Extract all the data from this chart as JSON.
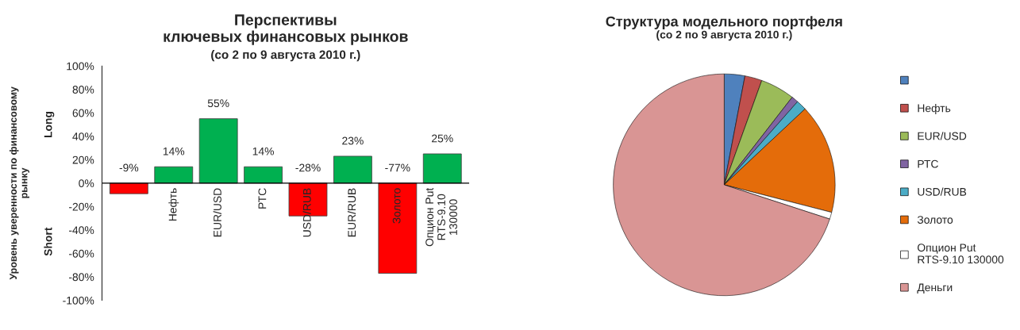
{
  "chart_data": [
    {
      "type": "bar",
      "title": "Перспективы\nключевых финансовых рынков",
      "subtitle": "(со 2 по 9 августа 2010 г.)",
      "ylabel": "Уровень уверенности по финансовому\nрынку",
      "categories": [
        null,
        "Нефть",
        "EUR/USD",
        "РТС",
        "USD/RUB",
        "EUR/RUB",
        "Золото",
        "Опцион Put\nRTS-9.10\n130000"
      ],
      "values": [
        -9,
        14,
        55,
        14,
        -28,
        23,
        -77,
        25
      ],
      "colors": [
        "#ff0000",
        "#00b050",
        "#00b050",
        "#00b050",
        "#ff0000",
        "#00b050",
        "#ff0000",
        "#00b050"
      ],
      "value_labels": [
        "-9%",
        "14%",
        "55%",
        "14%",
        "-28%",
        "23%",
        "-77%",
        "25%"
      ],
      "ylim": [
        -100,
        100
      ],
      "yticks": [
        {
          "value": -100,
          "label": "-100%"
        },
        {
          "value": -80,
          "label": "-80%"
        },
        {
          "value": -60,
          "label": "-60%"
        },
        {
          "value": -40,
          "label": "-40%"
        },
        {
          "value": -20,
          "label": "-20%"
        },
        {
          "value": 0,
          "label": "0%"
        },
        {
          "value": 20,
          "label": "20%"
        },
        {
          "value": 40,
          "label": "40%"
        },
        {
          "value": 60,
          "label": "60%"
        },
        {
          "value": 80,
          "label": "80%"
        },
        {
          "value": 100,
          "label": "100%"
        }
      ],
      "annotations": [
        "Long",
        "Short"
      ],
      "grid": false,
      "legend": false
    },
    {
      "type": "pie",
      "title": "Структура модельного портфеля",
      "subtitle": "(со 2 по 9 августа 2010 г.)",
      "categories": [
        null,
        "Нефть",
        "EUR/USD",
        "РТС",
        "USD/RUB",
        "Золото",
        "Опцион Put\nRTS-9.10 130000",
        "Деньги"
      ],
      "values": [
        3,
        2.5,
        5,
        1,
        1.5,
        16,
        1,
        70
      ],
      "colors": [
        "#4f81bd",
        "#c0504d",
        "#9bbb59",
        "#8064a2",
        "#4bacc6",
        "#e46c0a",
        "#ffffff",
        "#d99594"
      ],
      "legend": "right"
    }
  ]
}
